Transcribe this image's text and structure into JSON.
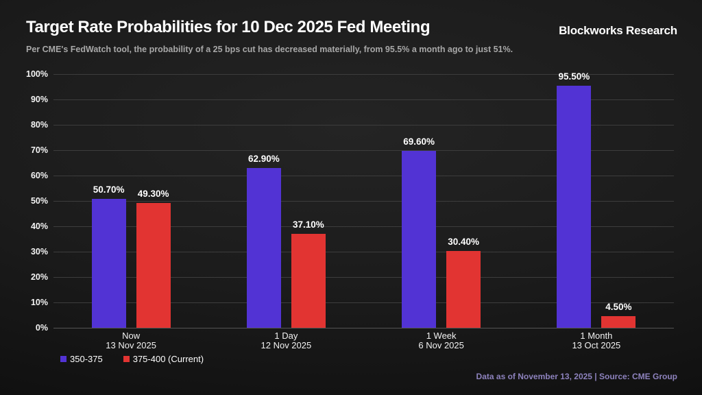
{
  "header": {
    "title": "Target Rate Probabilities for 10 Dec 2025 Fed Meeting",
    "subtitle": "Per CME's FedWatch tool, the probability of a 25 bps cut has decreased materially, from 95.5% a month ago to just 51%.",
    "brand": "Blockworks Research"
  },
  "chart_data": {
    "type": "bar",
    "title": "Target Rate Probabilities for 10 Dec 2025 Fed Meeting",
    "categories": [
      {
        "line1": "Now",
        "line2": "13 Nov 2025"
      },
      {
        "line1": "1 Day",
        "line2": "12 Nov 2025"
      },
      {
        "line1": "1 Week",
        "line2": "6 Nov 2025"
      },
      {
        "line1": "1 Month",
        "line2": "13 Oct 2025"
      }
    ],
    "series": [
      {
        "name": "350-375",
        "color": "#5233d4",
        "values": [
          50.7,
          62.9,
          69.6,
          95.5
        ],
        "labels": [
          "50.70%",
          "62.90%",
          "69.60%",
          "95.50%"
        ]
      },
      {
        "name": "375-400 (Current)",
        "color": "#e23432",
        "values": [
          49.3,
          37.1,
          30.4,
          4.5
        ],
        "labels": [
          "49.30%",
          "37.10%",
          "30.40%",
          "4.50%"
        ]
      }
    ],
    "ylim": [
      0,
      100
    ],
    "y_ticks": [
      "0%",
      "10%",
      "20%",
      "30%",
      "40%",
      "50%",
      "60%",
      "70%",
      "80%",
      "90%",
      "100%"
    ],
    "grid": true,
    "legend_position": "bottom-left"
  },
  "footer": {
    "text": "Data as of November 13, 2025 | Source: CME Group",
    "color": "#8d82bd"
  }
}
